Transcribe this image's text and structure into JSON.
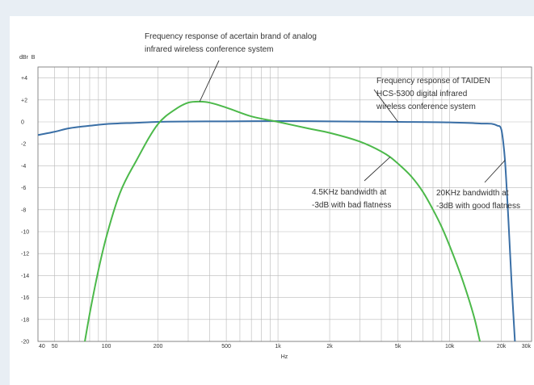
{
  "chart_data": {
    "type": "line",
    "title": "",
    "xlabel": "Hz",
    "ylabel": "dBr  B",
    "xscale": "log",
    "xlim": [
      40,
      30000
    ],
    "ylim": [
      -20,
      5
    ],
    "x_ticks": [
      40,
      50,
      100,
      200,
      500,
      1000,
      2000,
      5000,
      10000,
      20000,
      30000
    ],
    "x_tick_labels": [
      "40",
      "50",
      "100",
      "200",
      "500",
      "1k",
      "2k",
      "5k",
      "10k",
      "20k",
      "30k"
    ],
    "y_ticks": [
      4,
      2,
      0,
      -2,
      -4,
      -6,
      -8,
      -10,
      -12,
      -14,
      -16,
      -18,
      -20
    ],
    "y_tick_labels": [
      "+4",
      "+2",
      "0",
      "-2",
      "-4",
      "-6",
      "-8",
      "-10",
      "-12",
      "-14",
      "-16",
      "-18",
      "-20"
    ],
    "grid": true,
    "series": [
      {
        "color": "#3a6fa6",
        "x": [
          40,
          50,
          60,
          70,
          80,
          100,
          150,
          200,
          500,
          1000,
          2000,
          5000,
          10000,
          15000,
          19000,
          20000,
          20500,
          21000,
          22000,
          23000,
          24000
        ],
        "y": [
          -1.2,
          -0.9,
          -0.6,
          -0.45,
          -0.35,
          -0.2,
          -0.08,
          0,
          0.05,
          0.07,
          0.05,
          0,
          -0.05,
          -0.15,
          -0.35,
          -0.7,
          -1.8,
          -3.5,
          -9,
          -15,
          -20
        ]
      },
      {
        "color": "#4cb94a",
        "x": [
          75,
          80,
          90,
          100,
          120,
          150,
          200,
          250,
          300,
          350,
          400,
          500,
          700,
          1000,
          1500,
          2000,
          3000,
          4000,
          4500,
          5000,
          6000,
          7000,
          8000,
          9000,
          10000,
          12000,
          14000,
          15000
        ],
        "y": [
          -20,
          -17.5,
          -13.5,
          -10.5,
          -6.5,
          -3.5,
          -0.2,
          1.1,
          1.75,
          1.85,
          1.75,
          1.3,
          0.5,
          0,
          -0.6,
          -1.0,
          -1.8,
          -2.7,
          -3.2,
          -3.8,
          -5.0,
          -6.4,
          -8.0,
          -9.6,
          -11.3,
          -14.6,
          -18.0,
          -20.0
        ]
      }
    ],
    "annotations": [
      {
        "lines": [
          "Frequency response of acertain brand of analog",
          "infrared wireless conference system"
        ],
        "target": [
          350,
          1.85
        ]
      },
      {
        "lines": [
          "Frequency response of TAIDEN",
          "HCS-5300 digital infrared",
          "wireless conference system"
        ],
        "target": [
          5000,
          0
        ]
      },
      {
        "lines": [
          "4.5KHz bandwidth at",
          "-3dB with bad flatness"
        ],
        "target": [
          4500,
          -3.2
        ]
      },
      {
        "lines": [
          "20KHz bandwidth at",
          "-3dB with good flatness"
        ],
        "target": [
          21000,
          -3.5
        ]
      }
    ]
  }
}
